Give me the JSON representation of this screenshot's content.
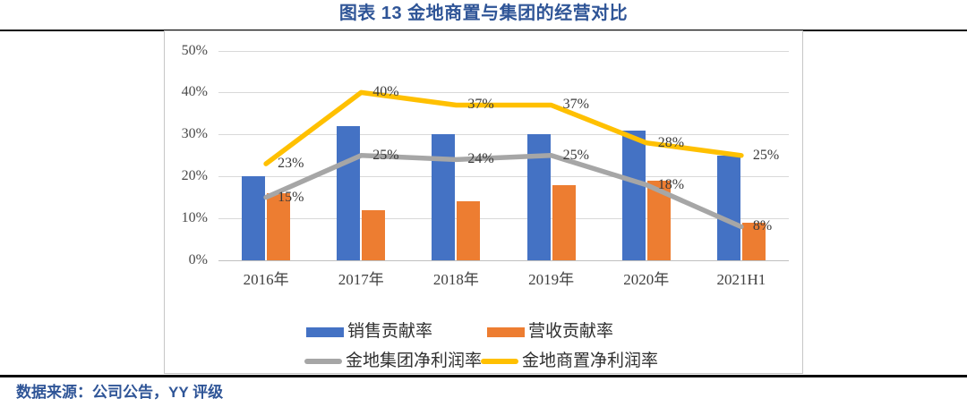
{
  "page": {
    "title": "图表 13 金地商置与集团的经营对比",
    "source_note": "数据来源：公司公告，YY 评级"
  },
  "colors": {
    "heading_blue": "#2F5597",
    "bar_blue": "#4472C4",
    "bar_orange": "#ED7D31",
    "line_gray": "#A6A6A6",
    "line_yellow": "#FFC000",
    "gridline": "#D9D9D9",
    "axis_line": "#C0C0C0",
    "divider_black": "#0a0a0a"
  },
  "chart_data": {
    "type": "bar",
    "subtype": "bar-and-line-combo",
    "categories": [
      "2016年",
      "2017年",
      "2018年",
      "2019年",
      "2020年",
      "2021H1"
    ],
    "series": [
      {
        "slug": "sales-contribution",
        "name": "销售贡献率",
        "type": "bar",
        "color": "#4472C4",
        "values": [
          20,
          32,
          30,
          30,
          31,
          25
        ]
      },
      {
        "slug": "revenue-contribution",
        "name": "营收贡献率",
        "type": "bar",
        "color": "#ED7D31",
        "values": [
          16,
          12,
          14,
          18,
          19,
          9
        ]
      },
      {
        "slug": "gemdale-group-net-margin",
        "name": "金地集团净利润率",
        "type": "line",
        "color": "#A6A6A6",
        "values": [
          15,
          25,
          24,
          25,
          18,
          8
        ],
        "point_labels": [
          "15%",
          "25%",
          "24%",
          "25%",
          "18%",
          "8%"
        ]
      },
      {
        "slug": "gemdale-properties-net-margin",
        "name": "金地商置净利润率",
        "type": "line",
        "color": "#FFC000",
        "values": [
          23,
          40,
          37,
          37,
          28,
          25
        ],
        "point_labels": [
          "23%",
          "40%",
          "37%",
          "37%",
          "28%",
          "25%"
        ]
      }
    ],
    "y_axis": {
      "min": 0,
      "max": 50,
      "step": 10,
      "tick_labels": [
        "0%",
        "10%",
        "20%",
        "30%",
        "40%",
        "50%"
      ]
    },
    "grid": true,
    "legend_position": "bottom",
    "ylim": [
      0,
      50
    ]
  }
}
